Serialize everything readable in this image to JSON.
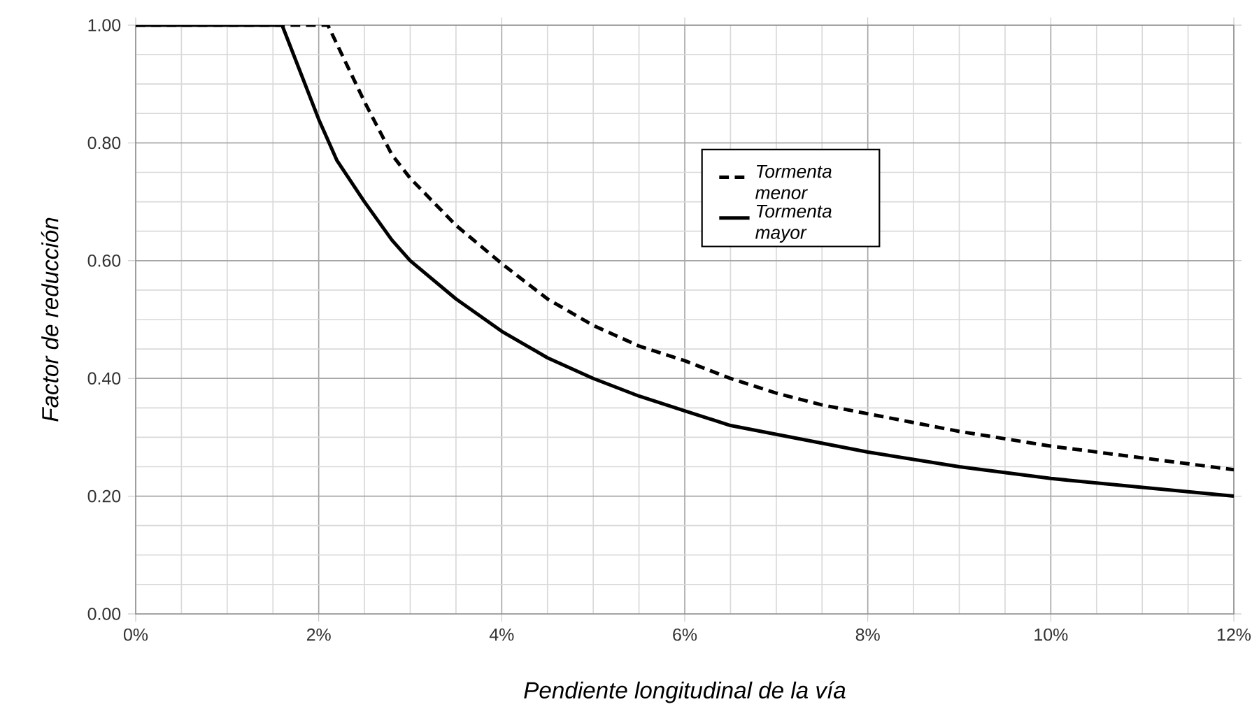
{
  "chart_data": {
    "type": "line",
    "xlabel": "Pendiente longitudinal de la vía",
    "ylabel": "Factor de reducción",
    "xlim": [
      0,
      12
    ],
    "ylim": [
      0,
      1
    ],
    "xticks": [
      {
        "value": 0,
        "label": "0%"
      },
      {
        "value": 2,
        "label": "2%"
      },
      {
        "value": 4,
        "label": "4%"
      },
      {
        "value": 6,
        "label": "6%"
      },
      {
        "value": 8,
        "label": "8%"
      },
      {
        "value": 10,
        "label": "10%"
      },
      {
        "value": 12,
        "label": "12%"
      }
    ],
    "yticks": [
      {
        "value": 0,
        "label": "0.00"
      },
      {
        "value": 0.2,
        "label": "0.20"
      },
      {
        "value": 0.4,
        "label": "0.40"
      },
      {
        "value": 0.6,
        "label": "0.60"
      },
      {
        "value": 0.8,
        "label": "0.80"
      },
      {
        "value": 1,
        "label": "1.00"
      }
    ],
    "grid": true,
    "legend": "top",
    "marker": "none",
    "series": [
      {
        "name": "Tormenta menor",
        "color": "#000000",
        "line_style": "dashed",
        "x": [
          0,
          2.1,
          2.5,
          2.8,
          3,
          3.5,
          4,
          4.5,
          5,
          5.5,
          6,
          6.5,
          7,
          7.5,
          8,
          9,
          10,
          11,
          12
        ],
        "values": [
          1,
          1,
          0.87,
          0.78,
          0.74,
          0.66,
          0.595,
          0.535,
          0.49,
          0.455,
          0.43,
          0.4,
          0.375,
          0.355,
          0.34,
          0.31,
          0.285,
          0.265,
          0.245
        ]
      },
      {
        "name": "Tormenta mayor",
        "color": "#000000",
        "line_style": "solid",
        "x": [
          0,
          1.6,
          2,
          2.2,
          2.5,
          2.8,
          3,
          3.5,
          4,
          4.5,
          5,
          5.5,
          6,
          6.5,
          7,
          7.5,
          8,
          9,
          10,
          11,
          12
        ],
        "values": [
          1,
          1,
          0.84,
          0.77,
          0.7,
          0.635,
          0.6,
          0.535,
          0.48,
          0.435,
          0.4,
          0.37,
          0.345,
          0.32,
          0.305,
          0.29,
          0.275,
          0.25,
          0.23,
          0.215,
          0.2
        ]
      }
    ]
  }
}
